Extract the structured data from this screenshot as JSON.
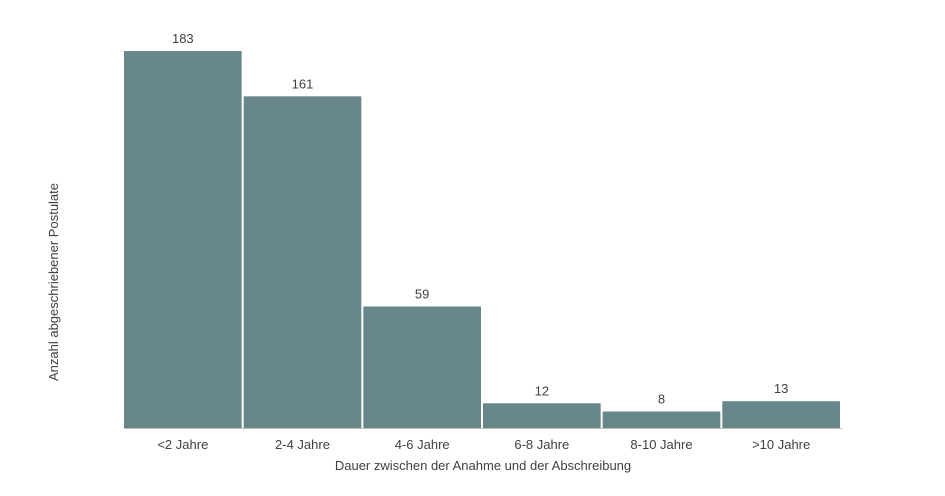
{
  "chart_data": {
    "type": "bar",
    "title": "",
    "xlabel": "Dauer zwischen der Anahme und der Abschreibung",
    "ylabel": "Anzahl abgeschriebener Postulate",
    "categories": [
      "<2 Jahre",
      "2-4 Jahre",
      "4-6 Jahre",
      "6-8 Jahre",
      "8-10 Jahre",
      ">10 Jahre"
    ],
    "values": [
      183,
      161,
      59,
      12,
      8,
      13
    ],
    "ylim": [
      0,
      183
    ],
    "bar_color": "#68878a",
    "grid": false,
    "legend": "none"
  }
}
